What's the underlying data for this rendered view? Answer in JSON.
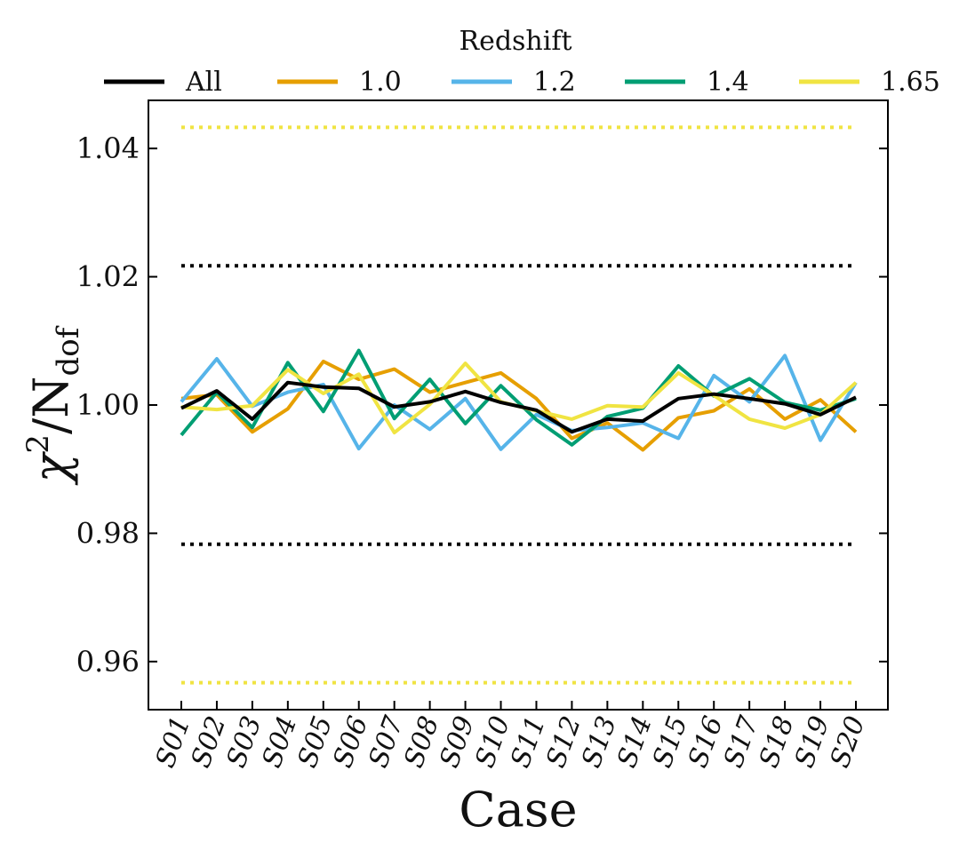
{
  "chart_data": {
    "type": "line",
    "title": "",
    "xlabel": "Case",
    "ylabel": "χ² / N_dof",
    "ylabel_main": "χ",
    "ylabel_sup": "2",
    "ylabel_n": "/N",
    "ylabel_sub": "dof",
    "ylim": [
      0.9525,
      1.0475
    ],
    "yticks": [
      0.96,
      0.98,
      1.0,
      1.02,
      1.04
    ],
    "ytick_labels": [
      "0.96",
      "0.98",
      "1.00",
      "1.02",
      "1.04"
    ],
    "categories": [
      "S01",
      "S02",
      "S03",
      "S04",
      "S05",
      "S06",
      "S07",
      "S08",
      "S09",
      "S10",
      "S11",
      "S12",
      "S13",
      "S14",
      "S15",
      "S16",
      "S17",
      "S18",
      "S19",
      "S20"
    ],
    "legend_title": "Redshift",
    "legend_position": "top",
    "series": [
      {
        "name": "All",
        "color": "#000000",
        "values": [
          0.9995,
          1.0022,
          0.9978,
          1.0035,
          1.0028,
          1.0026,
          0.9997,
          1.0005,
          1.0021,
          1.0004,
          0.9992,
          0.9958,
          0.9978,
          0.9975,
          1.001,
          1.0017,
          1.001,
          1.0002,
          0.9985,
          1.0012
        ]
      },
      {
        "name": "1.0",
        "color": "#E69F00",
        "values": [
          1.001,
          1.0016,
          0.9958,
          0.9994,
          1.0068,
          1.004,
          1.0056,
          1.002,
          1.0035,
          1.005,
          1.001,
          0.9948,
          0.9972,
          0.993,
          0.998,
          0.9991,
          1.0025,
          0.9978,
          1.0008,
          0.9958
        ]
      },
      {
        "name": "1.2",
        "color": "#56B4E9",
        "values": [
          1.0005,
          1.0072,
          0.9998,
          1.002,
          1.0032,
          0.9932,
          1.0,
          0.9962,
          1.001,
          0.9931,
          0.9985,
          0.996,
          0.9965,
          0.9972,
          0.9948,
          1.0046,
          1.0005,
          1.0077,
          0.9945,
          1.0035
        ]
      },
      {
        "name": "1.4",
        "color": "#009E73",
        "values": [
          0.9953,
          1.002,
          0.9965,
          1.0066,
          0.999,
          1.0085,
          0.9979,
          1.004,
          0.9971,
          1.003,
          0.9977,
          0.9938,
          0.9982,
          0.9995,
          1.0061,
          1.0014,
          1.0041,
          1.0004,
          0.9992,
          1.001
        ]
      },
      {
        "name": "1.65",
        "color": "#F0E442",
        "values": [
          0.9997,
          0.9993,
          0.9999,
          1.0055,
          1.0018,
          1.0048,
          0.9957,
          1.0001,
          1.0065,
          1.0005,
          0.9991,
          0.9978,
          0.9999,
          0.9997,
          1.005,
          1.0015,
          0.9978,
          0.9964,
          0.9985,
          1.0035
        ]
      }
    ],
    "reference_lines": [
      {
        "y": 1.0217,
        "color": "#000000",
        "style": "dotted",
        "group": "All"
      },
      {
        "y": 0.9783,
        "color": "#000000",
        "style": "dotted",
        "group": "All"
      },
      {
        "y": 1.0433,
        "color": "#F0E442",
        "style": "dotted",
        "group": "1.65"
      },
      {
        "y": 0.9567,
        "color": "#F0E442",
        "style": "dotted",
        "group": "1.65"
      }
    ],
    "grid": false
  }
}
